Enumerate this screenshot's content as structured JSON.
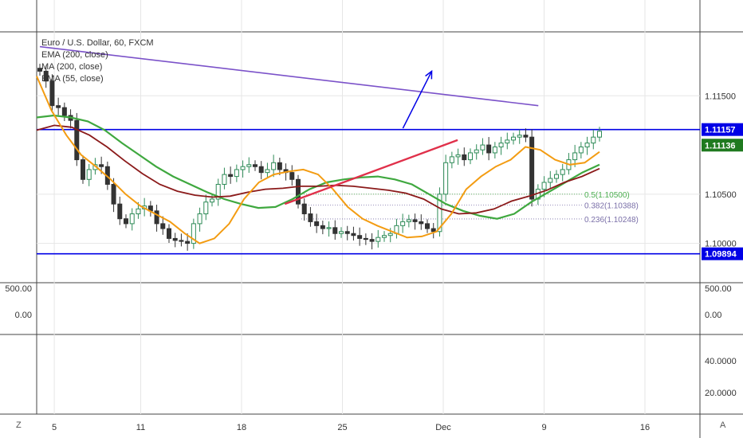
{
  "chart_data": {
    "type": "candlestick",
    "title": "Euro / U.S. Dollar, 60, FXCM",
    "indicators": [
      "EMA (200, close)",
      "MA (200, close)",
      "EMA (55, close)"
    ],
    "y_ticks": [
      "1.11500",
      "1.10500",
      "1.10000"
    ],
    "ylim": [
      1.096,
      1.1215
    ],
    "x_ticks": [
      "5",
      "11",
      "18",
      "25",
      "Dec",
      "9",
      "16"
    ],
    "price_labels": [
      {
        "value": "1.11157",
        "level": 1.11157,
        "color": "#0000e6"
      },
      {
        "value": "1.11136",
        "level": 1.11136,
        "color": "#1f7a1f"
      },
      {
        "value": "1.09894",
        "level": 1.09894,
        "color": "#0000e6"
      }
    ],
    "horizontal_levels": [
      1.11157,
      1.09894
    ],
    "fib_levels": [
      {
        "label": "0.5(1.10500)",
        "value": 1.105,
        "color": "#4caf50"
      },
      {
        "label": "0.382(1.10388)",
        "value": 1.10388,
        "color": "#7a6fa8"
      },
      {
        "label": "0.236(1.10248)",
        "value": 1.10248,
        "color": "#7a6fa8"
      }
    ],
    "trendlines": [
      {
        "name": "descending-resistance",
        "color": "#7b52c9",
        "points": [
          [
            4.2,
            1.12
          ],
          [
            21.5,
            1.114
          ]
        ]
      },
      {
        "name": "rising-support",
        "color": "#e0304a",
        "points": [
          [
            12.7,
            1.104
          ],
          [
            18.7,
            1.1105
          ]
        ]
      }
    ],
    "arrow": {
      "color": "#0000e6",
      "from": [
        16.8,
        1.1117
      ],
      "to": [
        17.8,
        1.1175
      ]
    },
    "close_series": [
      1.1175,
      1.1165,
      1.114,
      1.1138,
      1.113,
      1.1125,
      1.1085,
      1.1065,
      1.1075,
      1.108,
      1.1078,
      1.106,
      1.104,
      1.1025,
      1.102,
      1.103,
      1.1035,
      1.1038,
      1.1033,
      1.102,
      1.1015,
      1.1005,
      1.1003,
      1.1002,
      1.1,
      1.102,
      1.103,
      1.1042,
      1.1045,
      1.106,
      1.107,
      1.1068,
      1.1075,
      1.1078,
      1.108,
      1.1078,
      1.1072,
      1.1075,
      1.1082,
      1.1075,
      1.1072,
      1.1065,
      1.104,
      1.103,
      1.1022,
      1.1018,
      1.1015,
      1.1016,
      1.101,
      1.1012,
      1.101,
      1.1008,
      1.1005,
      1.1004,
      1.1002,
      1.1006,
      1.1008,
      1.101,
      1.1018,
      1.1022,
      1.1024,
      1.1022,
      1.102,
      1.1015,
      1.1012,
      1.105,
      1.1082,
      1.1088,
      1.109,
      1.1085,
      1.1092,
      1.1095,
      1.11,
      1.1092,
      1.1098,
      1.1102,
      1.1105,
      1.1108,
      1.111,
      1.1108,
      1.1045,
      1.1055,
      1.1062,
      1.1066,
      1.107,
      1.1075,
      1.1085,
      1.1092,
      1.1098,
      1.1102,
      1.1108,
      1.1114
    ],
    "ema200": [
      1.1128,
      1.113,
      1.1128,
      1.1124,
      1.1115,
      1.1102,
      1.109,
      1.1078,
      1.1068,
      1.106,
      1.1052,
      1.1045,
      1.104,
      1.1036,
      1.1037,
      1.1045,
      1.1055,
      1.1062,
      1.1065,
      1.1067,
      1.1068,
      1.1065,
      1.106,
      1.105,
      1.104,
      1.1033,
      1.1028,
      1.1025,
      1.103,
      1.1042,
      1.1052,
      1.1062,
      1.1072,
      1.108
    ],
    "ma200": [
      1.1115,
      1.112,
      1.1118,
      1.111,
      1.1098,
      1.1084,
      1.1071,
      1.106,
      1.1053,
      1.1049,
      1.1047,
      1.1048,
      1.1052,
      1.1055,
      1.1056,
      1.1058,
      1.1058,
      1.1059,
      1.1058,
      1.1056,
      1.1054,
      1.1051,
      1.1045,
      1.1035,
      1.103,
      1.1031,
      1.1035,
      1.1043,
      1.1048,
      1.1054,
      1.1062,
      1.1068,
      1.1076
    ],
    "ema55": [
      1.117,
      1.1135,
      1.111,
      1.109,
      1.1078,
      1.1065,
      1.105,
      1.1038,
      1.103,
      1.1022,
      1.101,
      1.1,
      1.1005,
      1.102,
      1.1045,
      1.1062,
      1.107,
      1.1073,
      1.1075,
      1.107,
      1.1055,
      1.1037,
      1.1025,
      1.1018,
      1.1012,
      1.1006,
      1.1007,
      1.1012,
      1.103,
      1.1055,
      1.1068,
      1.1078,
      1.1085,
      1.1098,
      1.1095,
      1.1085,
      1.108,
      1.1082,
      1.1093
    ],
    "indicator_panels": [
      {
        "ticks": [
          "500.00",
          "0.00"
        ]
      },
      {
        "ticks": [
          "40.0000",
          "20.0000"
        ]
      }
    ]
  },
  "ui": {
    "left_corner": "Z",
    "right_corner": "A"
  }
}
